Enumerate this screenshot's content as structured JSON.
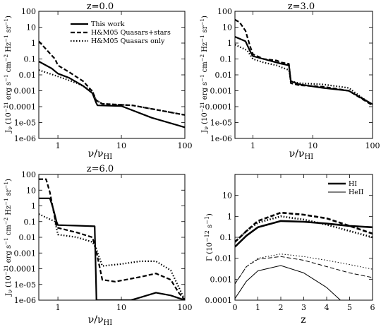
{
  "figure": {
    "panels": [
      {
        "title": "z=0.0",
        "xlabel": "ν/ν_HI",
        "ylabel": "J_ν (10^-21 erg s^-1 cm^-2 Hz^-1 sr^-1)"
      },
      {
        "title": "z=3.0",
        "xlabel": "ν/ν_HI",
        "ylabel": "J_ν (10^-21 erg s^-1 cm^-2 Hz^-1 sr^-1)"
      },
      {
        "title": "z=6.0",
        "xlabel": "ν/ν_HI",
        "ylabel": "J_ν (10^-21 erg s^-1 cm^-2 Hz^-1 sr^-1)"
      },
      {
        "title": "",
        "xlabel": "z",
        "ylabel": "Γ (10^-12 s^-1)"
      }
    ],
    "legend_spectra": [
      "This work",
      "H&M05 Quasars+stars",
      "H&M05 Quasars only"
    ],
    "legend_rates": [
      "HI",
      "HeII"
    ],
    "colors": {
      "line": "#000000",
      "background": "#ffffff"
    }
  },
  "chart_data": [
    {
      "type": "line",
      "title": "z=0.0",
      "xlabel": "ν/ν_HI",
      "ylabel": "J_ν (10^-21 erg s^-1 cm^-2 Hz^-1 sr^-1)",
      "xscale": "log",
      "yscale": "log",
      "xlim": [
        0.5,
        100
      ],
      "ylim": [
        1e-06,
        100
      ],
      "xticks": [
        "1",
        "10",
        "100"
      ],
      "yticks": [
        "1e-06",
        "1e-05",
        "0.0001",
        "0.001",
        "0.01",
        "0.1",
        "1",
        "10",
        "100"
      ],
      "legend": "top-right",
      "series": [
        {
          "name": "This work",
          "style": "solid",
          "points": [
            [
              0.5,
              0.07
            ],
            [
              0.8,
              0.025
            ],
            [
              1.0,
              0.012
            ],
            [
              1.5,
              0.0065
            ],
            [
              2.5,
              0.002
            ],
            [
              3.5,
              0.0007
            ],
            [
              4.0,
              0.00018
            ],
            [
              4.2,
              0.00012
            ],
            [
              10,
              0.00011
            ],
            [
              30,
              2e-05
            ],
            [
              100,
              5e-06
            ]
          ]
        },
        {
          "name": "H&M05 Quasars+stars",
          "style": "dashed",
          "points": [
            [
              0.5,
              1.3
            ],
            [
              0.7,
              0.3
            ],
            [
              0.9,
              0.1
            ],
            [
              1.0,
              0.04
            ],
            [
              1.5,
              0.015
            ],
            [
              2.5,
              0.004
            ],
            [
              3.5,
              0.0009
            ],
            [
              4.0,
              0.00025
            ],
            [
              5.0,
              0.00015
            ],
            [
              15,
              0.00012
            ],
            [
              50,
              5e-05
            ],
            [
              100,
              3e-05
            ]
          ]
        },
        {
          "name": "H&M05 Quasars only",
          "style": "dotted",
          "points": [
            [
              0.5,
              0.02
            ],
            [
              1.0,
              0.008
            ],
            [
              2.0,
              0.003
            ],
            [
              3.5,
              0.001
            ],
            [
              4.0,
              0.00025
            ],
            [
              5.0,
              0.00015
            ],
            [
              15,
              0.00012
            ],
            [
              50,
              5e-05
            ],
            [
              100,
              3e-05
            ]
          ]
        }
      ]
    },
    {
      "type": "line",
      "title": "z=3.0",
      "xlabel": "ν/ν_HI",
      "ylabel": "J_ν (10^-21 erg s^-1 cm^-2 Hz^-1 sr^-1)",
      "xscale": "log",
      "yscale": "log",
      "xlim": [
        0.5,
        100
      ],
      "ylim": [
        1e-06,
        100
      ],
      "xticks": [
        "1",
        "10",
        "100"
      ],
      "yticks": [
        "1e-06",
        "1e-05",
        "0.0001",
        "0.001",
        "0.01",
        "0.1",
        "1",
        "10",
        "100"
      ],
      "series": [
        {
          "name": "This work",
          "style": "solid",
          "points": [
            [
              0.5,
              2.5
            ],
            [
              0.75,
              1.3
            ],
            [
              0.9,
              0.3
            ],
            [
              1.0,
              0.15
            ],
            [
              1.5,
              0.1
            ],
            [
              2.5,
              0.06
            ],
            [
              3.0,
              0.05
            ],
            [
              4.0,
              0.04
            ],
            [
              4.3,
              0.004
            ],
            [
              6,
              0.0025
            ],
            [
              15,
              0.0015
            ],
            [
              40,
              0.001
            ],
            [
              100,
              0.00014
            ]
          ]
        },
        {
          "name": "H&M05 Quasars+stars",
          "style": "dashed",
          "points": [
            [
              0.5,
              30
            ],
            [
              0.6,
              20
            ],
            [
              0.75,
              6
            ],
            [
              0.9,
              0.6
            ],
            [
              1.0,
              0.2
            ],
            [
              1.5,
              0.1
            ],
            [
              2.5,
              0.08
            ],
            [
              3.0,
              0.06
            ],
            [
              4.0,
              0.05
            ],
            [
              4.3,
              0.003
            ],
            [
              6,
              0.0022
            ],
            [
              15,
              0.0018
            ],
            [
              40,
              0.001
            ],
            [
              100,
              0.00012
            ]
          ]
        },
        {
          "name": "H&M05 Quasars only",
          "style": "dotted",
          "points": [
            [
              0.5,
              0.8
            ],
            [
              0.8,
              0.35
            ],
            [
              1.0,
              0.1
            ],
            [
              1.5,
              0.06
            ],
            [
              2.5,
              0.04
            ],
            [
              3.0,
              0.03
            ],
            [
              4.0,
              0.02
            ],
            [
              4.3,
              0.004
            ],
            [
              6,
              0.003
            ],
            [
              15,
              0.0025
            ],
            [
              40,
              0.0015
            ],
            [
              100,
              0.00012
            ]
          ]
        }
      ]
    },
    {
      "type": "line",
      "title": "z=6.0",
      "xlabel": "ν/ν_HI",
      "ylabel": "J_ν (10^-21 erg s^-1 cm^-2 Hz^-1 sr^-1)",
      "xscale": "log",
      "yscale": "log",
      "xlim": [
        0.5,
        100
      ],
      "ylim": [
        1e-06,
        100
      ],
      "xticks": [
        "1",
        "10",
        "100"
      ],
      "yticks": [
        "1e-06",
        "1e-05",
        "0.0001",
        "0.001",
        "0.01",
        "0.1",
        "1",
        "10",
        "100"
      ],
      "series": [
        {
          "name": "This work",
          "style": "solid",
          "points": [
            [
              0.5,
              3.0
            ],
            [
              0.75,
              3.0
            ],
            [
              0.85,
              0.6
            ],
            [
              0.95,
              0.1
            ],
            [
              1.0,
              0.06
            ],
            [
              2.0,
              0.055
            ],
            [
              3.8,
              0.05
            ],
            [
              4.0,
              1e-05
            ],
            [
              4.05,
              1e-06
            ],
            [
              14,
              1e-06
            ],
            [
              20,
              1.5e-06
            ],
            [
              35,
              3e-06
            ],
            [
              60,
              2e-06
            ],
            [
              100,
              1e-06
            ]
          ]
        },
        {
          "name": "H&M05 Quasars+stars",
          "style": "dashed",
          "points": [
            [
              0.5,
              50
            ],
            [
              0.65,
              50
            ],
            [
              0.75,
              7
            ],
            [
              0.85,
              0.5
            ],
            [
              0.95,
              0.05
            ],
            [
              1.0,
              0.04
            ],
            [
              2.0,
              0.02
            ],
            [
              3.5,
              0.01
            ],
            [
              4.0,
              0.0015
            ],
            [
              5,
              2e-05
            ],
            [
              8,
              1.5e-05
            ],
            [
              20,
              3e-05
            ],
            [
              35,
              5e-05
            ],
            [
              60,
              2e-05
            ],
            [
              80,
              3e-06
            ],
            [
              100,
              1e-06
            ]
          ]
        },
        {
          "name": "H&M05 Quasars only",
          "style": "dotted",
          "points": [
            [
              0.5,
              0.3
            ],
            [
              0.9,
              0.1
            ],
            [
              1.0,
              0.015
            ],
            [
              2.0,
              0.01
            ],
            [
              3.5,
              0.005
            ],
            [
              4.0,
              0.002
            ],
            [
              5,
              0.00015
            ],
            [
              10,
              0.0002
            ],
            [
              20,
              0.0003
            ],
            [
              35,
              0.0003
            ],
            [
              60,
              8e-05
            ],
            [
              100,
              1e-06
            ]
          ]
        }
      ]
    },
    {
      "type": "line",
      "title": "",
      "xlabel": "z",
      "ylabel": "Γ (10^-12 s^-1)",
      "xscale": "linear",
      "yscale": "log",
      "xlim": [
        0,
        6
      ],
      "ylim": [
        0.0001,
        100
      ],
      "xticks": [
        "0",
        "1",
        "2",
        "3",
        "4",
        "5",
        "6"
      ],
      "yticks": [
        "0.0001",
        "0.001",
        "0.01",
        "0.1",
        "1",
        "10"
      ],
      "legend": "top-right",
      "series": [
        {
          "name": "HI",
          "group": "This work",
          "style": "solid-thick",
          "points": [
            [
              0,
              0.035
            ],
            [
              0.5,
              0.12
            ],
            [
              1,
              0.3
            ],
            [
              2,
              0.6
            ],
            [
              3,
              0.55
            ],
            [
              4,
              0.45
            ],
            [
              5,
              0.35
            ],
            [
              6,
              0.3
            ]
          ]
        },
        {
          "name": "",
          "group": "H&M05 Quasars+stars",
          "style": "dashed-thick",
          "points": [
            [
              0,
              0.06
            ],
            [
              0.5,
              0.2
            ],
            [
              1,
              0.6
            ],
            [
              2,
              1.5
            ],
            [
              3,
              1.2
            ],
            [
              4,
              0.8
            ],
            [
              5,
              0.35
            ],
            [
              6,
              0.15
            ]
          ]
        },
        {
          "name": "",
          "group": "H&M05 Quasars only",
          "style": "dotted-thick",
          "points": [
            [
              0,
              0.06
            ],
            [
              0.5,
              0.2
            ],
            [
              1,
              0.5
            ],
            [
              2,
              1.0
            ],
            [
              3,
              0.7
            ],
            [
              4,
              0.4
            ],
            [
              5,
              0.2
            ],
            [
              6,
              0.1
            ]
          ]
        },
        {
          "name": "HeII",
          "group": "This work",
          "style": "solid-thin",
          "points": [
            [
              0,
              0.00012
            ],
            [
              0.5,
              0.0008
            ],
            [
              1,
              0.0025
            ],
            [
              2,
              0.0045
            ],
            [
              3,
              0.002
            ],
            [
              4,
              0.0004
            ],
            [
              4.6,
              0.0001
            ]
          ]
        },
        {
          "name": "",
          "group": "H&M05 Quasars+stars",
          "style": "dashed-thin",
          "points": [
            [
              0,
              0.0006
            ],
            [
              0.5,
              0.004
            ],
            [
              1,
              0.009
            ],
            [
              2,
              0.012
            ],
            [
              3,
              0.008
            ],
            [
              4,
              0.004
            ],
            [
              5,
              0.002
            ],
            [
              6,
              0.0012
            ]
          ]
        },
        {
          "name": "",
          "group": "H&M05 Quasars only",
          "style": "dotted-thin",
          "points": [
            [
              0,
              0.0006
            ],
            [
              0.5,
              0.004
            ],
            [
              1,
              0.01
            ],
            [
              2,
              0.016
            ],
            [
              3,
              0.012
            ],
            [
              4,
              0.008
            ],
            [
              5,
              0.005
            ],
            [
              6,
              0.003
            ]
          ]
        }
      ]
    }
  ]
}
